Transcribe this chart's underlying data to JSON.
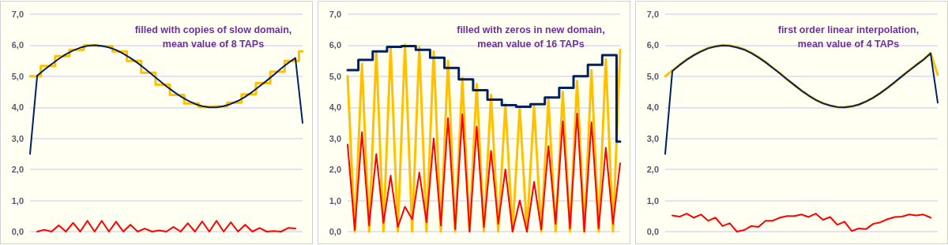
{
  "chart_data": [
    {
      "type": "line",
      "title": "filled with copies of slow domain,\nmean value of 8 TAPs",
      "categories": [
        null,
        null,
        null,
        null,
        null,
        null,
        null,
        null,
        null,
        null,
        null,
        null,
        null,
        null,
        null,
        null,
        null,
        null,
        null,
        null,
        null,
        null,
        null,
        null,
        null,
        null,
        null,
        null,
        null,
        null,
        null,
        null,
        null,
        null,
        null,
        null,
        null,
        null,
        null
      ],
      "ylim": [
        0,
        7
      ],
      "yticks": [
        {
          "value": 0,
          "label": "0,0"
        },
        {
          "value": 1,
          "label": "1,0"
        },
        {
          "value": 2,
          "label": "2,0"
        },
        {
          "value": 3,
          "label": "3,0"
        },
        {
          "value": 4,
          "label": "4,0"
        },
        {
          "value": 5,
          "label": "5,0"
        },
        {
          "value": 6,
          "label": "6,0"
        },
        {
          "value": 7,
          "label": "7,0"
        }
      ],
      "grid": "y",
      "tick_labels": "y",
      "series": [
        {
          "type": "step",
          "color": "#ffc000",
          "values": [
            5.0,
            5.0,
            5.33,
            5.33,
            5.65,
            5.65,
            5.85,
            5.85,
            6.0,
            6.0,
            5.97,
            5.97,
            5.8,
            5.8,
            5.5,
            5.5,
            5.12,
            5.12,
            4.73,
            4.73,
            4.4,
            4.4,
            4.13,
            4.13,
            4.02,
            4.02,
            4.03,
            4.03,
            4.15,
            4.15,
            4.42,
            4.42,
            4.78,
            4.78,
            5.15,
            5.15,
            5.5,
            5.5,
            5.8
          ]
        },
        {
          "color": "#002060",
          "values": [
            2.5,
            5.02,
            5.21,
            5.39,
            5.56,
            5.71,
            5.83,
            5.92,
            5.98,
            6.0,
            5.98,
            5.93,
            5.85,
            5.73,
            5.59,
            5.43,
            5.25,
            5.06,
            4.87,
            4.68,
            4.51,
            4.35,
            4.22,
            4.11,
            4.04,
            4.0,
            4.0,
            4.04,
            4.11,
            4.21,
            4.34,
            4.5,
            4.68,
            4.86,
            5.05,
            5.25,
            5.43,
            5.59,
            3.5
          ]
        },
        {
          "color": "#ff0000",
          "values": [
            null,
            0,
            0.06,
            0,
            0.2,
            0,
            0.28,
            0,
            0.35,
            0,
            0.35,
            0,
            0.32,
            0,
            0.22,
            0,
            0.1,
            0,
            0.04,
            0,
            0.15,
            0,
            0.27,
            0,
            0.33,
            0,
            0.35,
            0,
            0.3,
            0,
            0.22,
            0,
            0.12,
            0,
            0.02,
            0,
            0.12,
            0.1,
            null
          ]
        }
      ]
    },
    {
      "type": "line",
      "title": "filled with zeros in new domain,\nmean value of 16 TAPs",
      "categories": [
        null,
        null,
        null,
        null,
        null,
        null,
        null,
        null,
        null,
        null,
        null,
        null,
        null,
        null,
        null,
        null,
        null,
        null,
        null,
        null,
        null,
        null,
        null,
        null,
        null,
        null,
        null,
        null,
        null,
        null,
        null,
        null,
        null,
        null,
        null,
        null,
        null,
        null,
        null
      ],
      "ylim": [
        0,
        7
      ],
      "yticks": [
        {
          "value": 0,
          "label": "0,0"
        },
        {
          "value": 1,
          "label": "1,0"
        },
        {
          "value": 2,
          "label": "2,0"
        },
        {
          "value": 3,
          "label": "3,0"
        },
        {
          "value": 4,
          "label": "4,0"
        },
        {
          "value": 5,
          "label": "5,0"
        },
        {
          "value": 6,
          "label": "6,0"
        },
        {
          "value": 7,
          "label": "7,0"
        }
      ],
      "grid": "y",
      "tick_labels": "y",
      "series": [
        {
          "color": "#ffc000",
          "values": [
            5.0,
            0,
            5.4,
            0,
            5.8,
            0,
            5.95,
            0,
            6.02,
            0,
            5.95,
            0,
            5.8,
            0,
            5.5,
            0,
            4.95,
            0,
            4.75,
            0,
            4.4,
            0,
            4.1,
            0,
            4.0,
            0,
            4.05,
            0,
            4.25,
            0,
            4.5,
            0,
            4.85,
            0,
            5.2,
            0,
            5.55,
            0,
            5.85
          ]
        },
        {
          "type": "step",
          "color": "#002060",
          "values": [
            5.2,
            5.2,
            5.53,
            5.53,
            5.8,
            5.8,
            5.95,
            5.95,
            5.97,
            5.97,
            5.85,
            5.85,
            5.6,
            5.6,
            5.27,
            5.27,
            4.9,
            4.9,
            4.55,
            4.55,
            4.25,
            4.25,
            4.07,
            4.07,
            4.02,
            4.02,
            4.1,
            4.1,
            4.32,
            4.32,
            4.63,
            4.63,
            5.0,
            5.0,
            5.37,
            5.37,
            5.68,
            5.68,
            2.9
          ]
        },
        {
          "color": "#ff0000",
          "values": [
            2.8,
            0.05,
            3.2,
            0.2,
            2.5,
            0.28,
            1.8,
            0.15,
            0.8,
            0.4,
            1.9,
            0.3,
            3.0,
            0.2,
            3.65,
            0.08,
            3.78,
            0.0,
            3.38,
            0.15,
            2.6,
            0.25,
            2.0,
            0.0,
            1.0,
            0.0,
            1.6,
            0.07,
            2.75,
            0.25,
            3.55,
            0.1,
            3.8,
            0.0,
            3.52,
            0.1,
            2.7,
            0.25,
            2.2
          ]
        }
      ]
    },
    {
      "type": "line",
      "title": "first order linear interpolation,\nmean value of 4 TAPs",
      "categories": [
        null,
        null,
        null,
        null,
        null,
        null,
        null,
        null,
        null,
        null,
        null,
        null,
        null,
        null,
        null,
        null,
        null,
        null,
        null,
        null,
        null,
        null,
        null,
        null,
        null,
        null,
        null,
        null,
        null,
        null,
        null,
        null,
        null,
        null,
        null,
        null,
        null,
        null,
        null
      ],
      "ylim": [
        0,
        7
      ],
      "yticks": [
        {
          "value": 0,
          "label": "0,0"
        },
        {
          "value": 1,
          "label": "1,0"
        },
        {
          "value": 2,
          "label": "2,0"
        },
        {
          "value": 3,
          "label": "3,0"
        },
        {
          "value": 4,
          "label": "4,0"
        },
        {
          "value": 5,
          "label": "5,0"
        },
        {
          "value": 6,
          "label": "6,0"
        },
        {
          "value": 7,
          "label": "7,0"
        }
      ],
      "grid": "y",
      "tick_labels": "y",
      "series": [
        {
          "color": "#ffc000",
          "values": [
            5.0,
            5.19,
            5.37,
            5.54,
            5.69,
            5.81,
            5.91,
            5.97,
            6.0,
            5.99,
            5.94,
            5.87,
            5.76,
            5.62,
            5.46,
            5.28,
            5.1,
            4.9,
            4.72,
            4.54,
            4.38,
            4.24,
            4.13,
            4.06,
            4.01,
            4.0,
            4.03,
            4.09,
            4.19,
            4.31,
            4.46,
            4.63,
            4.81,
            5.0,
            5.19,
            5.37,
            5.54,
            5.75,
            5.05
          ]
        },
        {
          "color": "#002060",
          "values": [
            2.5,
            5.17,
            5.36,
            5.53,
            5.68,
            5.8,
            5.9,
            5.96,
            5.99,
            5.98,
            5.93,
            5.86,
            5.75,
            5.61,
            5.45,
            5.27,
            5.09,
            4.9,
            4.72,
            4.54,
            4.38,
            4.24,
            4.13,
            4.06,
            4.01,
            4.0,
            4.03,
            4.09,
            4.19,
            4.31,
            4.46,
            4.63,
            4.81,
            5.0,
            5.18,
            5.36,
            5.53,
            5.74,
            4.15
          ]
        },
        {
          "color": "#ff0000",
          "values": [
            null,
            0.52,
            0.48,
            0.58,
            0.45,
            0.55,
            0.35,
            0.45,
            0.18,
            0.27,
            0.0,
            0.05,
            0.18,
            0.15,
            0.35,
            0.35,
            0.45,
            0.5,
            0.5,
            0.55,
            0.47,
            0.58,
            0.38,
            0.47,
            0.22,
            0.32,
            0.02,
            0.1,
            0.08,
            0.25,
            0.3,
            0.4,
            0.47,
            0.48,
            0.55,
            0.52,
            0.55,
            0.45,
            null
          ]
        }
      ]
    }
  ]
}
